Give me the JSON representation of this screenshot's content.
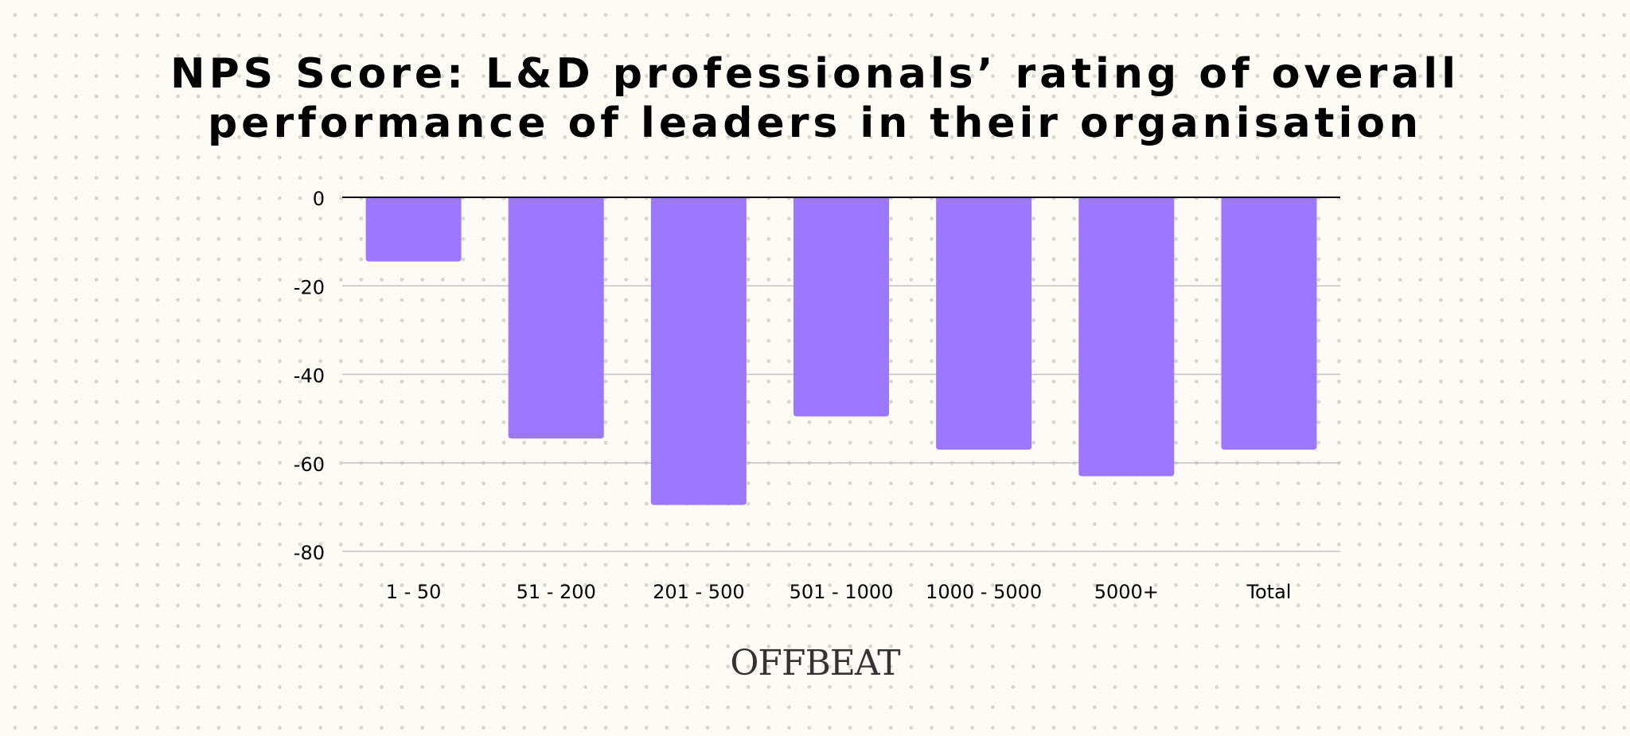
{
  "title_lines": [
    "NPS Score: L&D professionals’ rating of overall",
    "performance of leaders in their organisation"
  ],
  "brand": "OFFBEAT",
  "colors": {
    "bar": "#9b78ff",
    "grid": "#c2c2c2",
    "zero_line": "#000000",
    "text": "#000000"
  },
  "chart_data": {
    "type": "bar",
    "title": "NPS Score: L&D professionals’ rating of overall performance of leaders in their organisation",
    "categories": [
      "1 - 50",
      "51 - 200",
      "201 - 500",
      "501 - 1000",
      "1000 - 5000",
      "5000+",
      "Total"
    ],
    "values": [
      -14.5,
      -54.5,
      -69.5,
      -49.5,
      -57,
      -63,
      -57
    ],
    "xlabel": "",
    "ylabel": "",
    "ylim": [
      -80,
      0
    ],
    "yticks": [
      0,
      -20,
      -40,
      -60,
      -80
    ],
    "ytick_labels": [
      "0",
      "-20",
      "-40",
      "-60",
      "-80"
    ],
    "grid": true,
    "legend": "none"
  }
}
